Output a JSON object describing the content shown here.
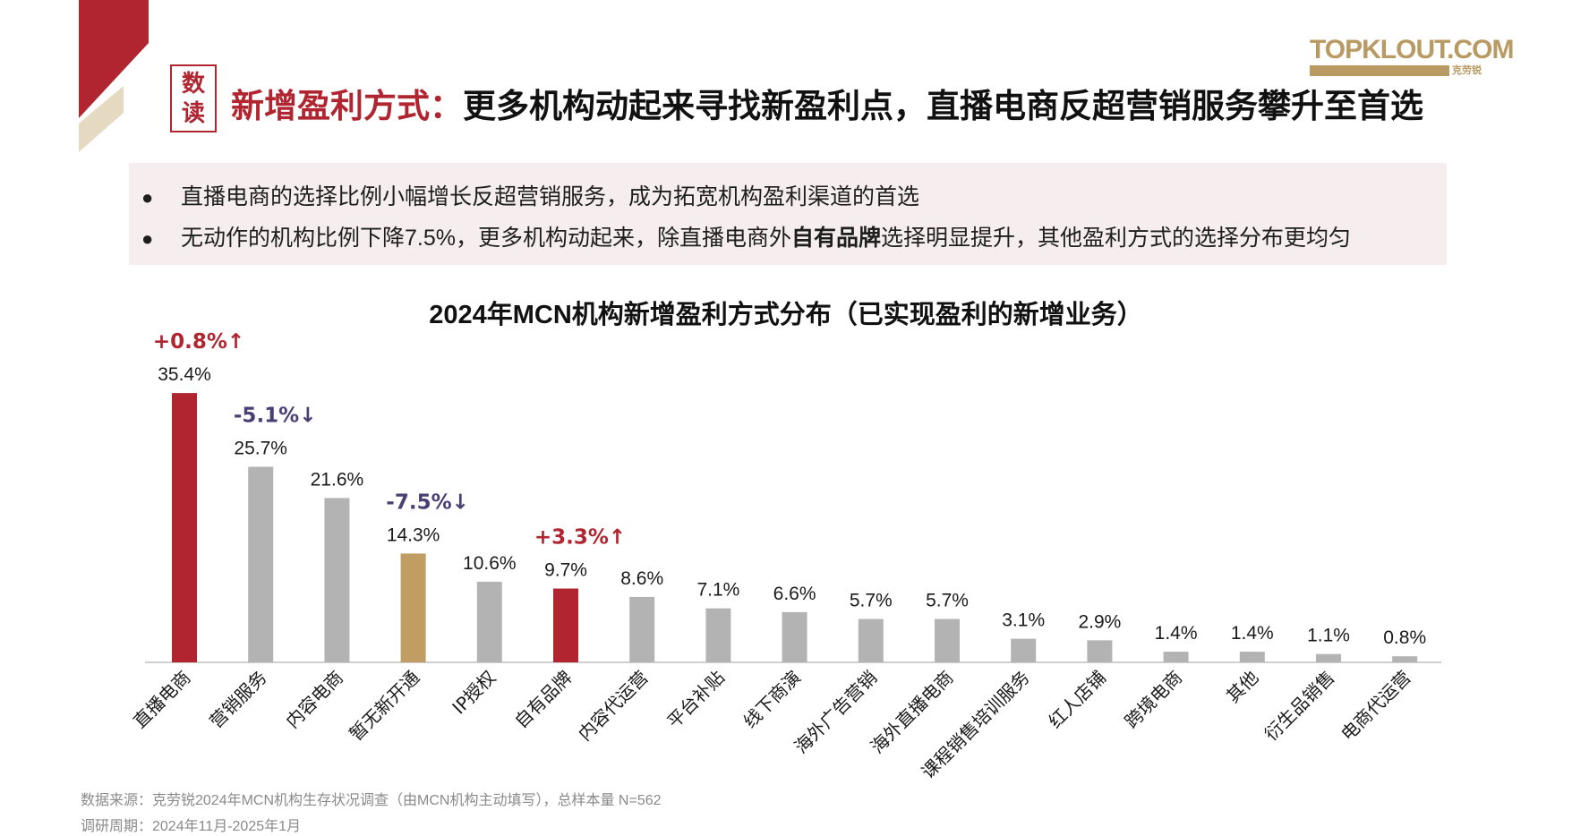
{
  "header": {
    "badge_line1": "数",
    "badge_line2": "读",
    "title_highlight": "新增盈利方式：",
    "title_rest": "更多机构动起来寻找新盈利点，直播电商反超营销服务攀升至首选"
  },
  "logo": {
    "brand": "TOPKLOUT.COM",
    "cn": "克劳锐"
  },
  "bullets": {
    "item1": "直播电商的选择比例小幅增长反超营销服务，成为拓宽机构盈利渠道的首选",
    "item2_pre": "无动作的机构比例下降7.5%，更多机构动起来，除直播电商外",
    "item2_bold": "自有品牌",
    "item2_post": "选择明显提升，其他盈利方式的选择分布更均匀"
  },
  "footer": {
    "source": "数据来源：克劳锐2024年MCN机构生存状况调查（由MCN机构主动填写），总样本量 N=562",
    "period": "调研周期：2024年11月-2025年1月"
  },
  "colors": {
    "accent_red": "#b0252f",
    "gray_bar": "#b3b3b3",
    "gold_bar": "#bf9d63",
    "decrease_purple": "#4a3f73"
  },
  "chart_data": {
    "type": "bar",
    "title": "2024年MCN机构新增盈利方式分布（已实现盈利的新增业务）",
    "categories": [
      "直播电商",
      "营销服务",
      "内容电商",
      "暂无新开通",
      "IP授权",
      "自有品牌",
      "内容代运营",
      "平台补贴",
      "线下商演",
      "海外广告营销",
      "海外直播电商",
      "课程销售培训服务",
      "红人店铺",
      "跨境电商",
      "其他",
      "衍生品销售",
      "电商代运营"
    ],
    "values": [
      35.4,
      25.7,
      21.6,
      14.3,
      10.6,
      9.7,
      8.6,
      7.1,
      6.6,
      5.7,
      5.7,
      3.1,
      2.9,
      1.4,
      1.4,
      1.1,
      0.8
    ],
    "value_labels": [
      "35.4%",
      "25.7%",
      "21.6%",
      "14.3%",
      "10.6%",
      "9.7%",
      "8.6%",
      "7.1%",
      "6.6%",
      "5.7%",
      "5.7%",
      "3.1%",
      "2.9%",
      "1.4%",
      "1.4%",
      "1.1%",
      "0.8%"
    ],
    "bar_colors": [
      "#b0252f",
      "#b3b3b3",
      "#b3b3b3",
      "#bf9d63",
      "#b3b3b3",
      "#b0252f",
      "#b3b3b3",
      "#b3b3b3",
      "#b3b3b3",
      "#b3b3b3",
      "#b3b3b3",
      "#b3b3b3",
      "#b3b3b3",
      "#b3b3b3",
      "#b3b3b3",
      "#b3b3b3",
      "#b3b3b3"
    ],
    "ylim": [
      0,
      40
    ],
    "grid": false,
    "annotations": [
      {
        "category": "直播电商",
        "text": "+0.8%↑",
        "direction": "up"
      },
      {
        "category": "营销服务",
        "text": "-5.1%↓",
        "direction": "down"
      },
      {
        "category": "暂无新开通",
        "text": "-7.5%↓",
        "direction": "down"
      },
      {
        "category": "自有品牌",
        "text": "+3.3%↑",
        "direction": "up"
      }
    ]
  }
}
